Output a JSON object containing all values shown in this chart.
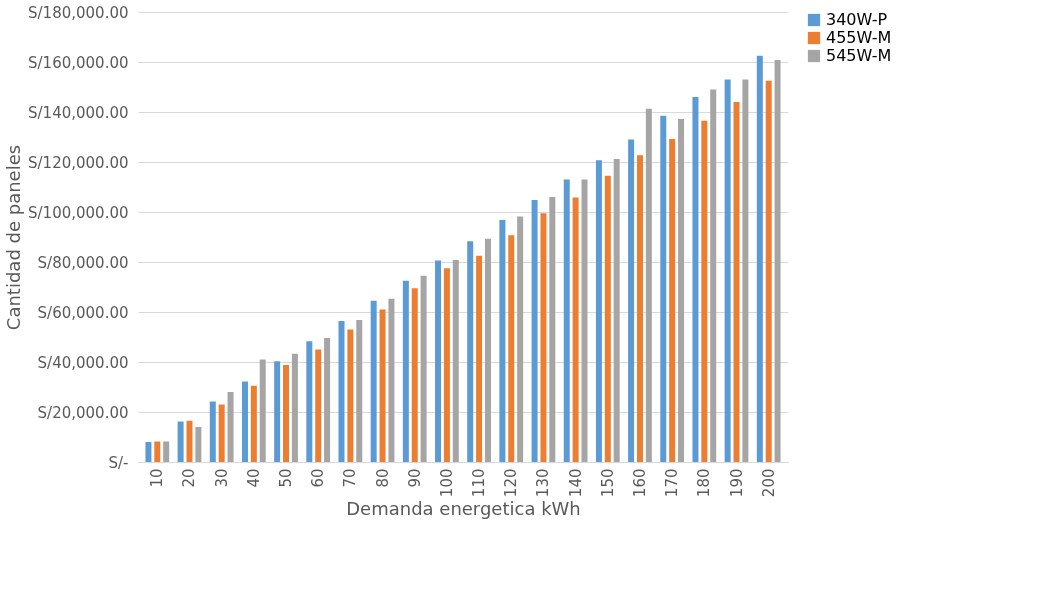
{
  "chart_data": {
    "type": "bar",
    "xlabel": "Demanda energetica kWh",
    "ylabel": "Cantidad de paneles",
    "categories": [
      "10",
      "20",
      "30",
      "40",
      "50",
      "60",
      "70",
      "80",
      "90",
      "100",
      "110",
      "120",
      "130",
      "140",
      "150",
      "160",
      "170",
      "180",
      "190",
      "200"
    ],
    "series": [
      {
        "name": "340W-P",
        "color": "#5b9bd5",
        "values": [
          8000,
          16200,
          24200,
          32200,
          40300,
          48300,
          56400,
          64500,
          72500,
          80600,
          88300,
          96800,
          104800,
          113000,
          120700,
          129000,
          138500,
          146000,
          153000,
          162500
        ]
      },
      {
        "name": "455W-M",
        "color": "#ed7d31",
        "values": [
          8200,
          16500,
          23000,
          30500,
          38800,
          45000,
          53000,
          61000,
          69500,
          77500,
          82500,
          90700,
          99500,
          105800,
          114500,
          122700,
          129200,
          136500,
          144000,
          152500
        ]
      },
      {
        "name": "545W-M",
        "color": "#a5a5a5",
        "values": [
          8200,
          14000,
          28000,
          41000,
          43300,
          49600,
          56800,
          65300,
          74500,
          80800,
          89300,
          98200,
          106000,
          113000,
          121200,
          141300,
          137200,
          149000,
          153000,
          160800
        ]
      }
    ],
    "ylim": [
      0,
      180000
    ],
    "yticks": [
      {
        "value": 0,
        "label": "S/-"
      },
      {
        "value": 20000,
        "label": "S/20,000.00"
      },
      {
        "value": 40000,
        "label": "S/40,000.00"
      },
      {
        "value": 60000,
        "label": "S/60,000.00"
      },
      {
        "value": 80000,
        "label": "S/80,000.00"
      },
      {
        "value": 100000,
        "label": "S/100,000.00"
      },
      {
        "value": 120000,
        "label": "S/120,000.00"
      },
      {
        "value": 140000,
        "label": "S/140,000.00"
      },
      {
        "value": 160000,
        "label": "S/160,000.00"
      },
      {
        "value": 180000,
        "label": "S/180,000.00"
      }
    ],
    "grid": "y",
    "legend": "right"
  }
}
